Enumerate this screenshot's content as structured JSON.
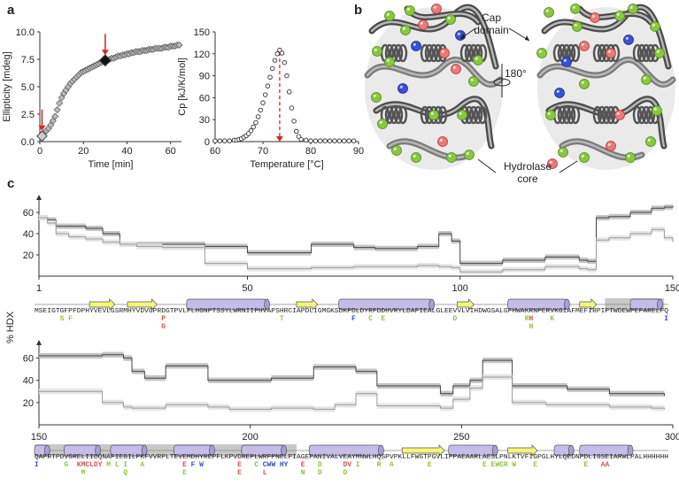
{
  "panels": {
    "a": {
      "label": "a"
    },
    "b": {
      "label": "b",
      "cap_label": "Cap\ndomain",
      "core_label": "Hydrolase\ncore",
      "rotation": "180°"
    },
    "c": {
      "label": "c",
      "ylabel": "% HDX"
    }
  },
  "chart_data": [
    {
      "type": "scatter",
      "xlabel": "Time [min]",
      "ylabel": "Ellipticity [mdeg]",
      "xlim": [
        0,
        65
      ],
      "ylim": [
        0,
        10
      ],
      "xticks": [
        0,
        20,
        40,
        60
      ],
      "yticks": [
        0.0,
        2.5,
        5.0,
        7.5,
        10.0
      ],
      "ytick_labels": [
        "0.0",
        "2.5",
        "5.0",
        "7.5",
        "10.0"
      ],
      "x": [
        1,
        2,
        3,
        4,
        5,
        6,
        7,
        8,
        9,
        10,
        11,
        12,
        13,
        14,
        15,
        16,
        17,
        18,
        19,
        20,
        21,
        22,
        23,
        24,
        25,
        26,
        27,
        28,
        29,
        30,
        31,
        32,
        33,
        34,
        35,
        36,
        37,
        38,
        39,
        40,
        41,
        42,
        43,
        44,
        45,
        46,
        47,
        48,
        49,
        50,
        51,
        52,
        53,
        54,
        55,
        56,
        57,
        58,
        59,
        60,
        61,
        62,
        63,
        64
      ],
      "y": [
        0.5,
        0.8,
        1.0,
        1.2,
        1.5,
        1.9,
        2.3,
        2.9,
        3.5,
        4.0,
        4.4,
        4.7,
        5.0,
        5.3,
        5.5,
        5.7,
        5.9,
        6.1,
        6.3,
        6.4,
        6.5,
        6.6,
        6.7,
        6.8,
        6.9,
        7.0,
        7.1,
        7.2,
        7.3,
        7.4,
        7.4,
        7.5,
        7.6,
        7.6,
        7.7,
        7.8,
        7.8,
        7.9,
        7.9,
        8.0,
        8.0,
        8.1,
        8.1,
        8.2,
        8.2,
        8.2,
        8.3,
        8.3,
        8.3,
        8.4,
        8.4,
        8.4,
        8.5,
        8.5,
        8.5,
        8.5,
        8.6,
        8.6,
        8.6,
        8.7,
        8.7,
        8.7,
        8.8,
        8.8
      ],
      "highlights": [
        {
          "x": 1,
          "y": 0.5,
          "marker": "light-diamond"
        },
        {
          "x": 30,
          "y": 7.4,
          "marker": "dark-diamond"
        }
      ]
    },
    {
      "type": "scatter",
      "xlabel": "Temperature [°C]",
      "ylabel": "Cp [kJ/K/mol]",
      "xlim": [
        60,
        90
      ],
      "ylim": [
        0,
        150
      ],
      "xticks": [
        60,
        70,
        80,
        90
      ],
      "yticks": [
        0,
        30,
        60,
        90,
        120,
        150
      ],
      "peak_x": 73.5,
      "x": [
        60,
        61,
        62,
        63,
        64,
        64.5,
        65,
        65.5,
        66,
        66.5,
        67,
        67.5,
        68,
        68.5,
        69,
        69.5,
        70,
        70.5,
        71,
        71.5,
        72,
        72.5,
        73,
        73.5,
        74,
        74.5,
        75,
        75.5,
        76,
        76.5,
        77,
        77.5,
        78,
        79,
        80,
        81,
        82,
        83,
        84,
        85,
        86,
        87,
        88,
        89
      ],
      "y": [
        1,
        1,
        1,
        1,
        2,
        2,
        3,
        4,
        6,
        8,
        11,
        15,
        20,
        26,
        34,
        43,
        53,
        64,
        76,
        88,
        100,
        111,
        120,
        125,
        121,
        108,
        90,
        68,
        46,
        28,
        14,
        7,
        3,
        2,
        1,
        1,
        1,
        1,
        1,
        1,
        1,
        1,
        1,
        1
      ]
    },
    {
      "type": "area",
      "name": "HDX top track",
      "xlabel": "",
      "ylabel": "% HDX",
      "xlim": [
        1,
        150
      ],
      "ylim": [
        0,
        70
      ],
      "xticks": [
        1,
        50,
        100,
        150
      ],
      "yticks": [
        20,
        40,
        60
      ],
      "series": [
        {
          "values_x": [
            1,
            3,
            5,
            8,
            12,
            16,
            20,
            24,
            30,
            40,
            50,
            60,
            65,
            70,
            75,
            80,
            85,
            90,
            95,
            98,
            100,
            103,
            110,
            120,
            125,
            128,
            130,
            132,
            135,
            140,
            145,
            148,
            150
          ],
          "values_y": [
            55,
            53,
            47,
            47,
            45,
            40,
            30,
            30,
            30,
            28,
            22,
            22,
            30,
            30,
            27,
            26,
            26,
            28,
            40,
            33,
            12,
            12,
            15,
            18,
            18,
            15,
            14,
            55,
            56,
            60,
            64,
            65,
            66
          ]
        },
        {
          "values_x": [
            1,
            3,
            5,
            8,
            12,
            16,
            20,
            24,
            30,
            40,
            50,
            60,
            65,
            70,
            75,
            80,
            85,
            90,
            95,
            98,
            100,
            103,
            110,
            120,
            125,
            128,
            130,
            132,
            135,
            140,
            145,
            148,
            150
          ],
          "values_y": [
            55,
            50,
            40,
            37,
            35,
            32,
            30,
            28,
            27,
            12,
            7,
            7,
            8,
            8,
            9,
            9,
            9,
            10,
            9,
            8,
            4,
            4,
            6,
            9,
            9,
            7,
            6,
            34,
            36,
            40,
            44,
            36,
            32
          ]
        }
      ]
    },
    {
      "type": "area",
      "name": "HDX bottom track",
      "xlabel": "",
      "ylabel": "% HDX",
      "xlim": [
        150,
        300
      ],
      "ylim": [
        0,
        70
      ],
      "xticks": [
        150,
        200,
        250,
        300
      ],
      "yticks": [
        20,
        40,
        60
      ],
      "series": [
        {
          "values_x": [
            150,
            155,
            160,
            165,
            170,
            172,
            175,
            180,
            185,
            190,
            195,
            200,
            205,
            210,
            215,
            220,
            225,
            230,
            235,
            240,
            245,
            248,
            252,
            255,
            260,
            262,
            265,
            270,
            275,
            280,
            285,
            290,
            295,
            298
          ],
          "values_y": [
            62,
            62,
            62,
            63,
            60,
            48,
            42,
            53,
            53,
            40,
            40,
            40,
            42,
            42,
            52,
            52,
            48,
            35,
            35,
            35,
            28,
            35,
            40,
            58,
            58,
            35,
            35,
            35,
            32,
            32,
            28,
            28,
            28,
            26
          ]
        },
        {
          "values_x": [
            150,
            155,
            160,
            165,
            170,
            172,
            175,
            180,
            185,
            190,
            195,
            200,
            205,
            210,
            215,
            220,
            225,
            230,
            235,
            240,
            245,
            248,
            252,
            255,
            260,
            262,
            265,
            270,
            275,
            280,
            285,
            290,
            295,
            298
          ],
          "values_y": [
            30,
            30,
            30,
            20,
            16,
            15,
            15,
            18,
            18,
            16,
            14,
            14,
            15,
            15,
            14,
            18,
            28,
            17,
            17,
            17,
            15,
            23,
            33,
            43,
            43,
            20,
            20,
            18,
            18,
            18,
            16,
            16,
            15,
            14
          ]
        }
      ]
    }
  ],
  "sequence": {
    "line1": "MSEIGTGFPFDPHYVEVLGSRMHYVDVGPRDGTPVLFLHGNPTSSYLWRNIIPHVAPSHRCIAPDLIGMGKSDKPDLDYRFDDHVRYLDAFIEALGLEEVVLVIHDWGSALGFHWAKRNPERVKGIAFMEFIRPIPTWDEWPEFARELFQ",
    "line2": "QAFRTPDVGRELIIDQNAFIEGILPKFVVRPLTEVEMDHYREPFLKPVDREPLWRFPNELPIAGEPANIVALVEAYMNWLHQSPVPKLLFWGTPGVLIPPAEAARLAESLPNLKTVFIGPGLHYLQEDNPDLIGSEIARWLPALHHHHHH",
    "mutations1": [
      {
        "pos": 6,
        "text": "S",
        "color": "#8cc63e"
      },
      {
        "pos": 8,
        "text": "F",
        "color": "#8cc63e"
      },
      {
        "pos": 30,
        "text": "P",
        "color": "#d9534f"
      },
      {
        "pos": 30,
        "text2": "G",
        "color2": "#d9534f"
      },
      {
        "pos": 58,
        "text": "T",
        "color": "#8cc63e"
      },
      {
        "pos": 75,
        "text": "F",
        "color": "#3a4fd6"
      },
      {
        "pos": 79,
        "text": "C",
        "color": "#8cc63e"
      },
      {
        "pos": 82,
        "text": "E",
        "color": "#8cc63e"
      },
      {
        "pos": 99,
        "text": "D",
        "color": "#8cc63e"
      },
      {
        "pos": 116,
        "text": "R",
        "color": "#8cc63e"
      },
      {
        "pos": 117,
        "text": "H",
        "color": "#d9534f"
      },
      {
        "pos": 117,
        "text2": "H",
        "color2": "#8cc63e"
      },
      {
        "pos": 122,
        "text": "K",
        "color": "#8cc63e"
      },
      {
        "pos": 149,
        "text": "I",
        "color": "#3a4fd6"
      }
    ],
    "mutations2": [
      {
        "pos": 0,
        "text": "I",
        "color": "#3a4fd6"
      },
      {
        "pos": 7,
        "text": "G",
        "color": "#8cc63e"
      },
      {
        "pos": 10,
        "text": "KMCLDY",
        "color": "#d9534f"
      },
      {
        "pos": 11,
        "text2": "M",
        "color2": "#8cc63e"
      },
      {
        "pos": 17,
        "text": "M",
        "color": "#8cc63e"
      },
      {
        "pos": 19,
        "text": "L",
        "color": "#8cc63e"
      },
      {
        "pos": 21,
        "text": "I",
        "color": "#8cc63e"
      },
      {
        "pos": 21,
        "text2": "Q",
        "color2": "#8cc63e"
      },
      {
        "pos": 25,
        "text": "A",
        "color": "#8cc63e"
      },
      {
        "pos": 35,
        "text": "E",
        "color": "#d9534f"
      },
      {
        "pos": 35,
        "text2": "E",
        "color2": "#8cc63e"
      },
      {
        "pos": 37,
        "text": "F",
        "color": "#3a4fd6"
      },
      {
        "pos": 39,
        "text": "W",
        "color": "#3a4fd6"
      },
      {
        "pos": 48,
        "text": "E",
        "color": "#d9534f"
      },
      {
        "pos": 48,
        "text2": "E",
        "color2": "#d9534f"
      },
      {
        "pos": 52,
        "text": "C",
        "color": "#8cc63e"
      },
      {
        "pos": 54,
        "text": "CWW",
        "color": "#3a4fd6"
      },
      {
        "pos": 54,
        "text2": "L",
        "color2": "#d9534f"
      },
      {
        "pos": 58,
        "text": "HY",
        "color": "#3a4fd6"
      },
      {
        "pos": 63,
        "text": "E",
        "color": "#d9534f"
      },
      {
        "pos": 63,
        "text2": "N",
        "color2": "#8cc63e"
      },
      {
        "pos": 67,
        "text": "D",
        "color": "#8cc63e"
      },
      {
        "pos": 67,
        "text2": "D",
        "color2": "#8cc63e"
      },
      {
        "pos": 73,
        "text": "DV",
        "color": "#d9534f"
      },
      {
        "pos": 73,
        "text2": "D",
        "color2": "#8cc63e"
      },
      {
        "pos": 76,
        "text": "I",
        "color": "#8cc63e"
      },
      {
        "pos": 81,
        "text": "R",
        "color": "#8cc63e"
      },
      {
        "pos": 84,
        "text": "A",
        "color": "#8cc63e"
      },
      {
        "pos": 93,
        "text": "E",
        "color": "#8cc63e"
      },
      {
        "pos": 106,
        "text": "E",
        "color": "#8cc63e"
      },
      {
        "pos": 108,
        "text": "EWCR",
        "color": "#8cc63e"
      },
      {
        "pos": 113,
        "text": "W",
        "color": "#8cc63e"
      },
      {
        "pos": 118,
        "text": "E",
        "color": "#8cc63e"
      },
      {
        "pos": 130,
        "text": "E",
        "color": "#8cc63e"
      },
      {
        "pos": 134,
        "text": "AA",
        "color": "#d9534f"
      }
    ]
  },
  "colors": {
    "helix": "#c5bde8",
    "strand": "#f4f77a",
    "shade": "#c8c8c8",
    "green": "#8cc63e",
    "red": "#d9534f",
    "blue": "#3a4fd6"
  }
}
